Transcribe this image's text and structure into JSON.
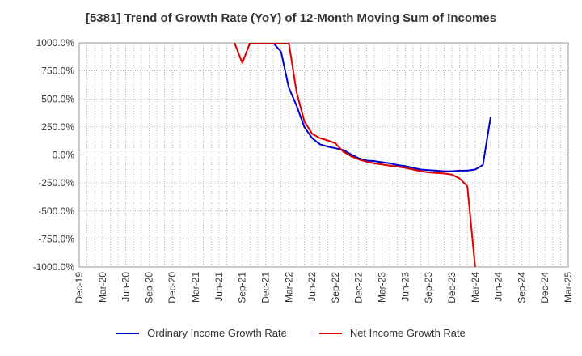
{
  "chart_data": {
    "type": "line",
    "title": "[5381]  Trend of Growth Rate (YoY) of 12-Month Moving Sum of Incomes",
    "xlabel": "",
    "ylabel": "",
    "ylim": [
      -1000,
      1000
    ],
    "y_ticks": [
      "1000.0%",
      "750.0%",
      "500.0%",
      "250.0%",
      "0.0%",
      "-250.0%",
      "-500.0%",
      "-750.0%",
      "-1000.0%"
    ],
    "x_ticks": [
      "Dec-19",
      "Mar-20",
      "Jun-20",
      "Sep-20",
      "Dec-20",
      "Mar-21",
      "Jun-21",
      "Sep-21",
      "Dec-21",
      "Mar-22",
      "Jun-22",
      "Sep-22",
      "Dec-22",
      "Mar-23",
      "Jun-23",
      "Sep-23",
      "Dec-23",
      "Mar-24",
      "Jun-24",
      "Sep-24",
      "Dec-24",
      "Mar-25"
    ],
    "grid": true,
    "legend_position": "bottom",
    "series": [
      {
        "name": "Ordinary Income Growth Rate",
        "color": "#0000cc",
        "points": [
          [
            "Jan-22",
            1000
          ],
          [
            "Feb-22",
            920
          ],
          [
            "Mar-22",
            600
          ],
          [
            "Apr-22",
            440
          ],
          [
            "May-22",
            250
          ],
          [
            "Jun-22",
            150
          ],
          [
            "Jul-22",
            95
          ],
          [
            "Aug-22",
            75
          ],
          [
            "Sep-22",
            60
          ],
          [
            "Oct-22",
            45
          ],
          [
            "Nov-22",
            5
          ],
          [
            "Dec-22",
            -30
          ],
          [
            "Jan-23",
            -50
          ],
          [
            "Feb-23",
            -55
          ],
          [
            "Mar-23",
            -65
          ],
          [
            "Apr-23",
            -75
          ],
          [
            "May-23",
            -90
          ],
          [
            "Jun-23",
            -100
          ],
          [
            "Jul-23",
            -115
          ],
          [
            "Aug-23",
            -130
          ],
          [
            "Sep-23",
            -135
          ],
          [
            "Oct-23",
            -140
          ],
          [
            "Nov-23",
            -145
          ],
          [
            "Dec-23",
            -145
          ],
          [
            "Jan-24",
            -140
          ],
          [
            "Feb-24",
            -140
          ],
          [
            "Mar-24",
            -130
          ],
          [
            "Apr-24",
            -90
          ],
          [
            "May-24",
            340
          ]
        ]
      },
      {
        "name": "Net Income Growth Rate",
        "color": "#dd0000",
        "points": [
          [
            "Aug-21",
            1000
          ],
          [
            "Sep-21",
            820
          ],
          [
            "Oct-21",
            1000
          ],
          [
            "Mar-22",
            1000
          ],
          [
            "Apr-22",
            560
          ],
          [
            "May-22",
            300
          ],
          [
            "Jun-22",
            190
          ],
          [
            "Jul-22",
            150
          ],
          [
            "Aug-22",
            130
          ],
          [
            "Sep-22",
            105
          ],
          [
            "Oct-22",
            30
          ],
          [
            "Nov-22",
            -10
          ],
          [
            "Dec-22",
            -40
          ],
          [
            "Jan-23",
            -60
          ],
          [
            "Feb-23",
            -75
          ],
          [
            "Mar-23",
            -85
          ],
          [
            "Apr-23",
            -95
          ],
          [
            "May-23",
            -105
          ],
          [
            "Jun-23",
            -115
          ],
          [
            "Jul-23",
            -130
          ],
          [
            "Aug-23",
            -145
          ],
          [
            "Sep-23",
            -155
          ],
          [
            "Oct-23",
            -160
          ],
          [
            "Nov-23",
            -165
          ],
          [
            "Dec-23",
            -175
          ],
          [
            "Jan-24",
            -210
          ],
          [
            "Feb-24",
            -280
          ],
          [
            "Mar-24",
            -1000
          ]
        ]
      }
    ]
  }
}
